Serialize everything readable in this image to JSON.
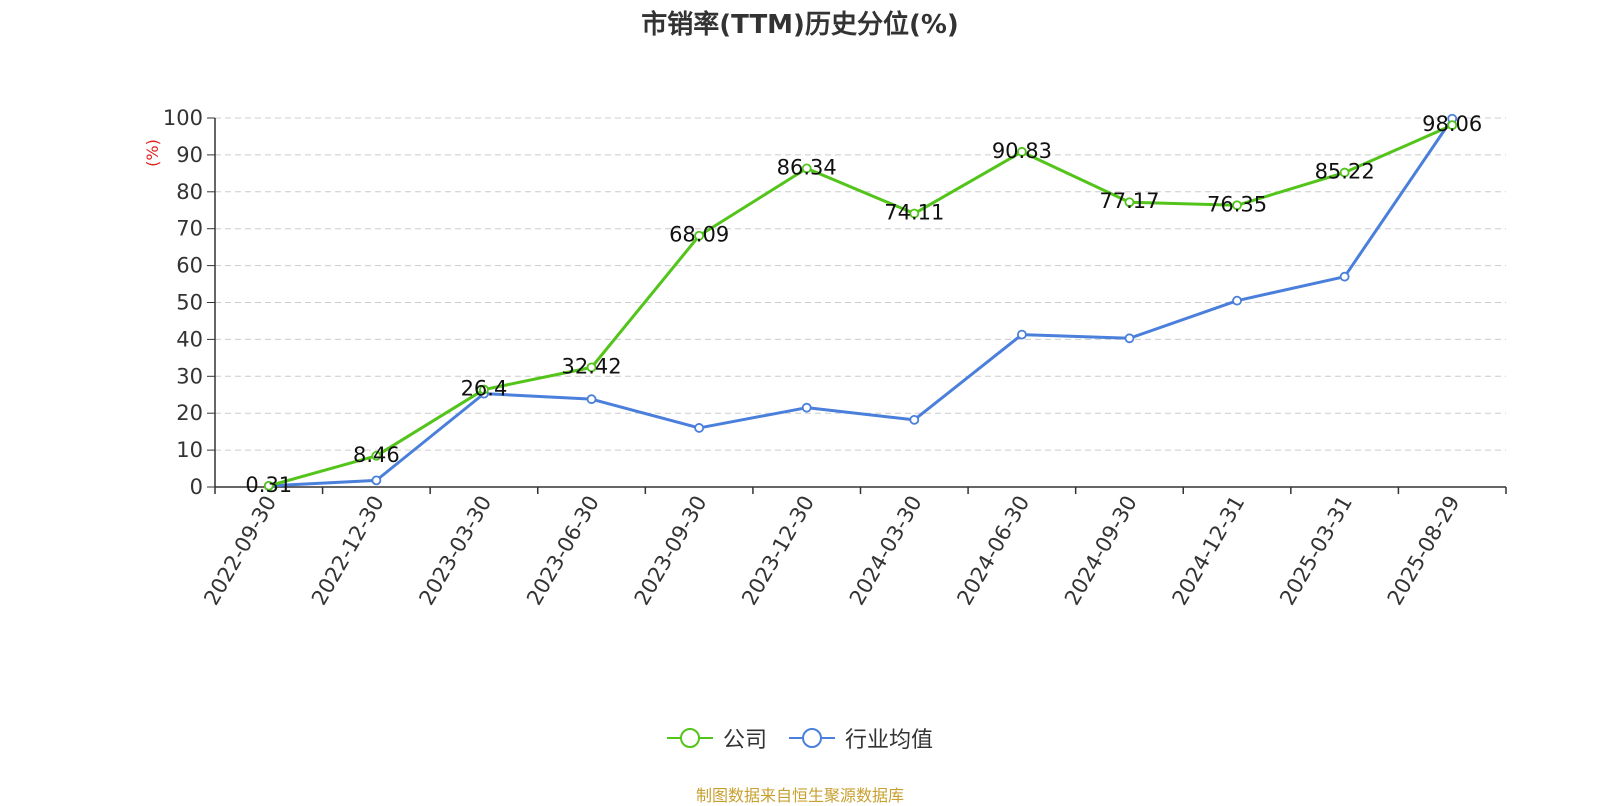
{
  "chart_data": {
    "type": "line",
    "title": "市销率(TTM)历史分位(%)",
    "ylabel": "(%)",
    "xlabel": "",
    "ylim": [
      0,
      100
    ],
    "yticks": [
      0,
      10,
      20,
      30,
      40,
      50,
      60,
      70,
      80,
      90,
      100
    ],
    "grid": true,
    "legend_position": "bottom",
    "categories": [
      "2022-09-30",
      "2022-12-30",
      "2023-03-30",
      "2023-06-30",
      "2023-09-30",
      "2023-12-30",
      "2024-03-30",
      "2024-06-30",
      "2024-09-30",
      "2024-12-31",
      "2025-03-31",
      "2025-08-29"
    ],
    "series": [
      {
        "name": "公司",
        "color": "#52c41a",
        "values": [
          0.31,
          8.46,
          26.4,
          32.42,
          68.09,
          86.34,
          74.11,
          90.83,
          77.17,
          76.35,
          85.22,
          98.06
        ],
        "labels": [
          "0.31",
          "8.46",
          "26.4",
          "32.42",
          "68.09",
          "86.34",
          "74.11",
          "90.83",
          "77.17",
          "76.35",
          "85.22",
          "98.06"
        ]
      },
      {
        "name": "行业均值",
        "color": "#4a7fdb",
        "values": [
          0.3,
          1.8,
          25.3,
          23.8,
          16.0,
          21.5,
          18.2,
          41.3,
          40.3,
          50.5,
          57.0,
          99.8
        ]
      }
    ],
    "source": "制图数据来自恒生聚源数据库"
  }
}
